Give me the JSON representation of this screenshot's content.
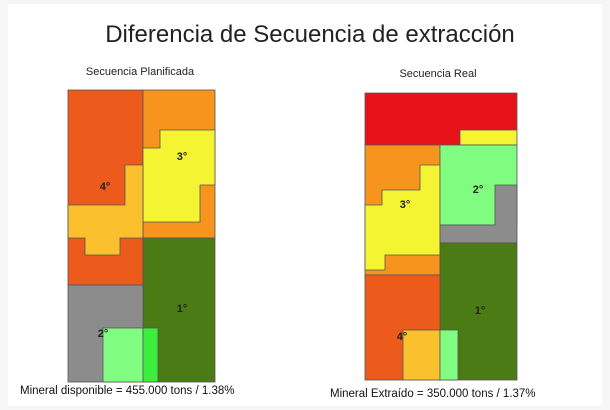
{
  "title": "Diferencia de Secuencia de extracción",
  "panels": [
    {
      "subtitle": "Secuencia Planificada",
      "labels": [
        "4°",
        "3°",
        "2°",
        "1°"
      ],
      "footer": "Mineral disponible = 455.000 tons / 1.38%"
    },
    {
      "subtitle": "Secuencia Real",
      "labels": [
        "3°",
        "2°",
        "4°",
        "1°"
      ],
      "footer": "Mineral Extraído = 350.000 tons /  1.37%"
    }
  ]
}
